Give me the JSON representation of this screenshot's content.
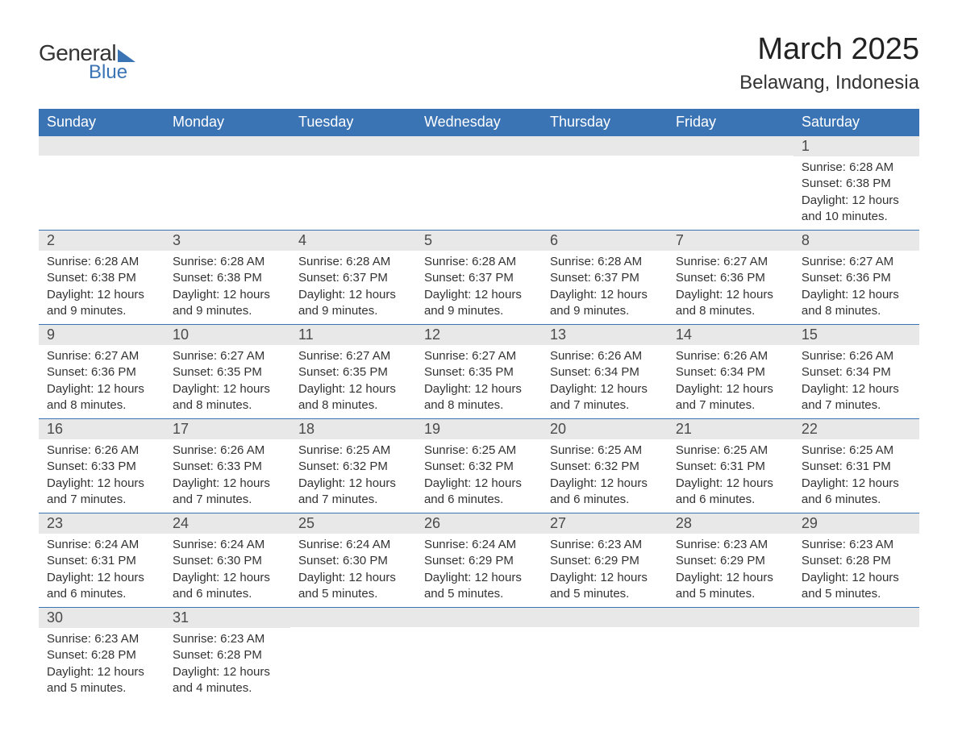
{
  "logo": {
    "text_general": "General",
    "text_blue": "Blue",
    "brand_color": "#3b74b5"
  },
  "header": {
    "month_title": "March 2025",
    "location": "Belawang, Indonesia"
  },
  "calendar": {
    "header_bg": "#3b74b5",
    "header_text_color": "#ffffff",
    "daynum_bg": "#e8e8e8",
    "border_color": "#3b74b5",
    "text_color": "#333333",
    "weekdays": [
      "Sunday",
      "Monday",
      "Tuesday",
      "Wednesday",
      "Thursday",
      "Friday",
      "Saturday"
    ],
    "weeks": [
      [
        {
          "day": "",
          "sunrise": "",
          "sunset": "",
          "daylight": ""
        },
        {
          "day": "",
          "sunrise": "",
          "sunset": "",
          "daylight": ""
        },
        {
          "day": "",
          "sunrise": "",
          "sunset": "",
          "daylight": ""
        },
        {
          "day": "",
          "sunrise": "",
          "sunset": "",
          "daylight": ""
        },
        {
          "day": "",
          "sunrise": "",
          "sunset": "",
          "daylight": ""
        },
        {
          "day": "",
          "sunrise": "",
          "sunset": "",
          "daylight": ""
        },
        {
          "day": "1",
          "sunrise": "Sunrise: 6:28 AM",
          "sunset": "Sunset: 6:38 PM",
          "daylight": "Daylight: 12 hours and 10 minutes."
        }
      ],
      [
        {
          "day": "2",
          "sunrise": "Sunrise: 6:28 AM",
          "sunset": "Sunset: 6:38 PM",
          "daylight": "Daylight: 12 hours and 9 minutes."
        },
        {
          "day": "3",
          "sunrise": "Sunrise: 6:28 AM",
          "sunset": "Sunset: 6:38 PM",
          "daylight": "Daylight: 12 hours and 9 minutes."
        },
        {
          "day": "4",
          "sunrise": "Sunrise: 6:28 AM",
          "sunset": "Sunset: 6:37 PM",
          "daylight": "Daylight: 12 hours and 9 minutes."
        },
        {
          "day": "5",
          "sunrise": "Sunrise: 6:28 AM",
          "sunset": "Sunset: 6:37 PM",
          "daylight": "Daylight: 12 hours and 9 minutes."
        },
        {
          "day": "6",
          "sunrise": "Sunrise: 6:28 AM",
          "sunset": "Sunset: 6:37 PM",
          "daylight": "Daylight: 12 hours and 9 minutes."
        },
        {
          "day": "7",
          "sunrise": "Sunrise: 6:27 AM",
          "sunset": "Sunset: 6:36 PM",
          "daylight": "Daylight: 12 hours and 8 minutes."
        },
        {
          "day": "8",
          "sunrise": "Sunrise: 6:27 AM",
          "sunset": "Sunset: 6:36 PM",
          "daylight": "Daylight: 12 hours and 8 minutes."
        }
      ],
      [
        {
          "day": "9",
          "sunrise": "Sunrise: 6:27 AM",
          "sunset": "Sunset: 6:36 PM",
          "daylight": "Daylight: 12 hours and 8 minutes."
        },
        {
          "day": "10",
          "sunrise": "Sunrise: 6:27 AM",
          "sunset": "Sunset: 6:35 PM",
          "daylight": "Daylight: 12 hours and 8 minutes."
        },
        {
          "day": "11",
          "sunrise": "Sunrise: 6:27 AM",
          "sunset": "Sunset: 6:35 PM",
          "daylight": "Daylight: 12 hours and 8 minutes."
        },
        {
          "day": "12",
          "sunrise": "Sunrise: 6:27 AM",
          "sunset": "Sunset: 6:35 PM",
          "daylight": "Daylight: 12 hours and 8 minutes."
        },
        {
          "day": "13",
          "sunrise": "Sunrise: 6:26 AM",
          "sunset": "Sunset: 6:34 PM",
          "daylight": "Daylight: 12 hours and 7 minutes."
        },
        {
          "day": "14",
          "sunrise": "Sunrise: 6:26 AM",
          "sunset": "Sunset: 6:34 PM",
          "daylight": "Daylight: 12 hours and 7 minutes."
        },
        {
          "day": "15",
          "sunrise": "Sunrise: 6:26 AM",
          "sunset": "Sunset: 6:34 PM",
          "daylight": "Daylight: 12 hours and 7 minutes."
        }
      ],
      [
        {
          "day": "16",
          "sunrise": "Sunrise: 6:26 AM",
          "sunset": "Sunset: 6:33 PM",
          "daylight": "Daylight: 12 hours and 7 minutes."
        },
        {
          "day": "17",
          "sunrise": "Sunrise: 6:26 AM",
          "sunset": "Sunset: 6:33 PM",
          "daylight": "Daylight: 12 hours and 7 minutes."
        },
        {
          "day": "18",
          "sunrise": "Sunrise: 6:25 AM",
          "sunset": "Sunset: 6:32 PM",
          "daylight": "Daylight: 12 hours and 7 minutes."
        },
        {
          "day": "19",
          "sunrise": "Sunrise: 6:25 AM",
          "sunset": "Sunset: 6:32 PM",
          "daylight": "Daylight: 12 hours and 6 minutes."
        },
        {
          "day": "20",
          "sunrise": "Sunrise: 6:25 AM",
          "sunset": "Sunset: 6:32 PM",
          "daylight": "Daylight: 12 hours and 6 minutes."
        },
        {
          "day": "21",
          "sunrise": "Sunrise: 6:25 AM",
          "sunset": "Sunset: 6:31 PM",
          "daylight": "Daylight: 12 hours and 6 minutes."
        },
        {
          "day": "22",
          "sunrise": "Sunrise: 6:25 AM",
          "sunset": "Sunset: 6:31 PM",
          "daylight": "Daylight: 12 hours and 6 minutes."
        }
      ],
      [
        {
          "day": "23",
          "sunrise": "Sunrise: 6:24 AM",
          "sunset": "Sunset: 6:31 PM",
          "daylight": "Daylight: 12 hours and 6 minutes."
        },
        {
          "day": "24",
          "sunrise": "Sunrise: 6:24 AM",
          "sunset": "Sunset: 6:30 PM",
          "daylight": "Daylight: 12 hours and 6 minutes."
        },
        {
          "day": "25",
          "sunrise": "Sunrise: 6:24 AM",
          "sunset": "Sunset: 6:30 PM",
          "daylight": "Daylight: 12 hours and 5 minutes."
        },
        {
          "day": "26",
          "sunrise": "Sunrise: 6:24 AM",
          "sunset": "Sunset: 6:29 PM",
          "daylight": "Daylight: 12 hours and 5 minutes."
        },
        {
          "day": "27",
          "sunrise": "Sunrise: 6:23 AM",
          "sunset": "Sunset: 6:29 PM",
          "daylight": "Daylight: 12 hours and 5 minutes."
        },
        {
          "day": "28",
          "sunrise": "Sunrise: 6:23 AM",
          "sunset": "Sunset: 6:29 PM",
          "daylight": "Daylight: 12 hours and 5 minutes."
        },
        {
          "day": "29",
          "sunrise": "Sunrise: 6:23 AM",
          "sunset": "Sunset: 6:28 PM",
          "daylight": "Daylight: 12 hours and 5 minutes."
        }
      ],
      [
        {
          "day": "30",
          "sunrise": "Sunrise: 6:23 AM",
          "sunset": "Sunset: 6:28 PM",
          "daylight": "Daylight: 12 hours and 5 minutes."
        },
        {
          "day": "31",
          "sunrise": "Sunrise: 6:23 AM",
          "sunset": "Sunset: 6:28 PM",
          "daylight": "Daylight: 12 hours and 4 minutes."
        },
        {
          "day": "",
          "sunrise": "",
          "sunset": "",
          "daylight": ""
        },
        {
          "day": "",
          "sunrise": "",
          "sunset": "",
          "daylight": ""
        },
        {
          "day": "",
          "sunrise": "",
          "sunset": "",
          "daylight": ""
        },
        {
          "day": "",
          "sunrise": "",
          "sunset": "",
          "daylight": ""
        },
        {
          "day": "",
          "sunrise": "",
          "sunset": "",
          "daylight": ""
        }
      ]
    ]
  }
}
